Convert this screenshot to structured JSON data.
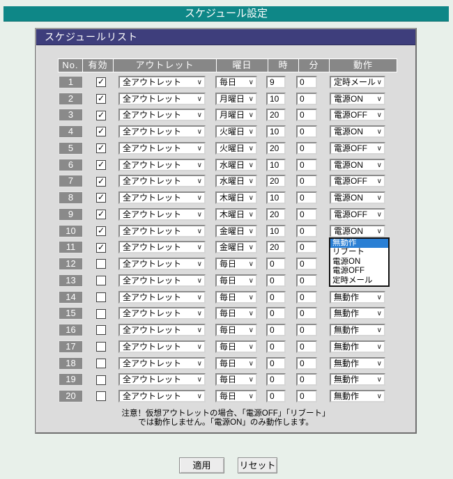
{
  "page": {
    "title": "スケジュール設定"
  },
  "panel": {
    "title": "スケジュールリスト"
  },
  "icons": {
    "chevron": "∨",
    "check": "✓"
  },
  "colors": {
    "page_background": "#e8f0ea",
    "banner_teal": "#0e8787",
    "panel_title_navy": "#3e3e7c",
    "header_gray": "#878787",
    "selection_blue": "#2a7fd4"
  },
  "table": {
    "headers": [
      "No.",
      "有効",
      "アウトレット",
      "曜日",
      "時",
      "分",
      "動作"
    ],
    "rows": [
      {
        "no": "1",
        "enabled": true,
        "outlet": "全アウトレット",
        "day": "毎日",
        "hour": "9",
        "minute": "0",
        "action": "定時メール"
      },
      {
        "no": "2",
        "enabled": true,
        "outlet": "全アウトレット",
        "day": "月曜日",
        "hour": "10",
        "minute": "0",
        "action": "電源ON"
      },
      {
        "no": "3",
        "enabled": true,
        "outlet": "全アウトレット",
        "day": "月曜日",
        "hour": "20",
        "minute": "0",
        "action": "電源OFF"
      },
      {
        "no": "4",
        "enabled": true,
        "outlet": "全アウトレット",
        "day": "火曜日",
        "hour": "10",
        "minute": "0",
        "action": "電源ON"
      },
      {
        "no": "5",
        "enabled": true,
        "outlet": "全アウトレット",
        "day": "火曜日",
        "hour": "20",
        "minute": "0",
        "action": "電源OFF"
      },
      {
        "no": "6",
        "enabled": true,
        "outlet": "全アウトレット",
        "day": "水曜日",
        "hour": "10",
        "minute": "0",
        "action": "電源ON"
      },
      {
        "no": "7",
        "enabled": true,
        "outlet": "全アウトレット",
        "day": "水曜日",
        "hour": "20",
        "minute": "0",
        "action": "電源OFF"
      },
      {
        "no": "8",
        "enabled": true,
        "outlet": "全アウトレット",
        "day": "木曜日",
        "hour": "10",
        "minute": "0",
        "action": "電源ON"
      },
      {
        "no": "9",
        "enabled": true,
        "outlet": "全アウトレット",
        "day": "木曜日",
        "hour": "20",
        "minute": "0",
        "action": "電源OFF"
      },
      {
        "no": "10",
        "enabled": true,
        "outlet": "全アウトレット",
        "day": "金曜日",
        "hour": "10",
        "minute": "0",
        "action": "電源ON"
      },
      {
        "no": "11",
        "enabled": true,
        "outlet": "全アウトレット",
        "day": "金曜日",
        "hour": "20",
        "minute": "0",
        "action": "",
        "action_dropdown_open": true
      },
      {
        "no": "12",
        "enabled": false,
        "outlet": "全アウトレット",
        "day": "毎日",
        "hour": "0",
        "minute": "0",
        "action": "無動作"
      },
      {
        "no": "13",
        "enabled": false,
        "outlet": "全アウトレット",
        "day": "毎日",
        "hour": "0",
        "minute": "0",
        "action": "無動作"
      },
      {
        "no": "14",
        "enabled": false,
        "outlet": "全アウトレット",
        "day": "毎日",
        "hour": "0",
        "minute": "0",
        "action": "無動作"
      },
      {
        "no": "15",
        "enabled": false,
        "outlet": "全アウトレット",
        "day": "毎日",
        "hour": "0",
        "minute": "0",
        "action": "無動作"
      },
      {
        "no": "16",
        "enabled": false,
        "outlet": "全アウトレット",
        "day": "毎日",
        "hour": "0",
        "minute": "0",
        "action": "無動作"
      },
      {
        "no": "17",
        "enabled": false,
        "outlet": "全アウトレット",
        "day": "毎日",
        "hour": "0",
        "minute": "0",
        "action": "無動作"
      },
      {
        "no": "18",
        "enabled": false,
        "outlet": "全アウトレット",
        "day": "毎日",
        "hour": "0",
        "minute": "0",
        "action": "無動作"
      },
      {
        "no": "19",
        "enabled": false,
        "outlet": "全アウトレット",
        "day": "毎日",
        "hour": "0",
        "minute": "0",
        "action": "無動作"
      },
      {
        "no": "20",
        "enabled": false,
        "outlet": "全アウトレット",
        "day": "毎日",
        "hour": "0",
        "minute": "0",
        "action": "無動作"
      }
    ]
  },
  "dropdown": {
    "open_for_row": "11",
    "options": [
      {
        "label": "無動作",
        "selected": true
      },
      {
        "label": "リブート",
        "selected": false
      },
      {
        "label": "電源ON",
        "selected": false
      },
      {
        "label": "電源OFF",
        "selected": false
      },
      {
        "label": "定時メール",
        "selected": false
      }
    ]
  },
  "note": {
    "line1": "注意！仮想アウトレットの場合、「電源OFF」「リブート」",
    "line2": "では動作しません。「電源ON」のみ動作します。"
  },
  "buttons": {
    "apply": "適用",
    "reset": "リセット"
  }
}
